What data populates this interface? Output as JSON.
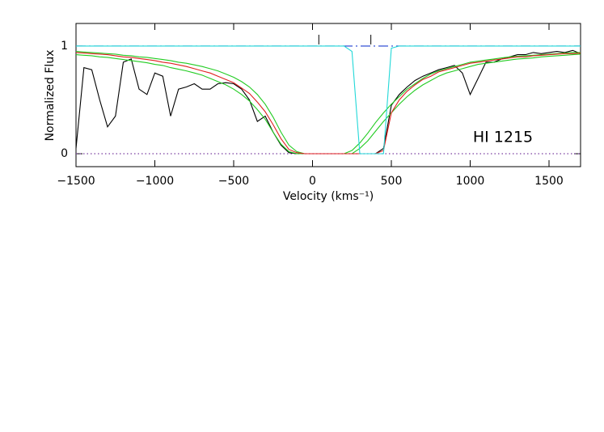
{
  "chart_data": {
    "type": "line",
    "xlabel": "Velocity (kms⁻¹)",
    "ylabel": "Normalized Flux",
    "annotation": "HI 1215",
    "xlim": [
      -1500,
      1700
    ],
    "ylim": [
      -0.12,
      1.21
    ],
    "xticks": [
      {
        "value": -1500,
        "label": "−1500"
      },
      {
        "value": -1000,
        "label": "−1000"
      },
      {
        "value": -500,
        "label": "−500"
      },
      0,
      500,
      1000,
      1500
    ],
    "yticks": [
      0,
      1
    ],
    "component_markers": [
      40,
      370
    ],
    "reference_lines": [
      {
        "value": 1,
        "color": "#1f3fd0",
        "style": "dashed"
      },
      {
        "value": 0,
        "color": "#7a3fa0",
        "style": "dotted"
      }
    ],
    "x": [
      -1500,
      -1450,
      -1400,
      -1350,
      -1300,
      -1250,
      -1200,
      -1150,
      -1100,
      -1050,
      -1000,
      -950,
      -900,
      -850,
      -800,
      -750,
      -700,
      -650,
      -600,
      -550,
      -500,
      -450,
      -400,
      -350,
      -300,
      -250,
      -200,
      -150,
      -100,
      -50,
      0,
      50,
      100,
      150,
      200,
      250,
      300,
      350,
      400,
      450,
      500,
      550,
      600,
      650,
      700,
      750,
      800,
      850,
      900,
      950,
      1000,
      1050,
      1100,
      1150,
      1200,
      1250,
      1300,
      1350,
      1400,
      1450,
      1500,
      1550,
      1600,
      1650,
      1700
    ],
    "series": [
      {
        "name": "data",
        "color": "#000000",
        "values": [
          0.05,
          0.8,
          0.78,
          0.5,
          0.25,
          0.35,
          0.85,
          0.88,
          0.6,
          0.55,
          0.75,
          0.72,
          0.35,
          0.6,
          0.62,
          0.65,
          0.6,
          0.6,
          0.65,
          0.66,
          0.65,
          0.6,
          0.5,
          0.3,
          0.35,
          0.2,
          0.08,
          0.01,
          0,
          0,
          0,
          0,
          0,
          0,
          0,
          0,
          0,
          0,
          0,
          0.05,
          0.45,
          0.55,
          0.62,
          0.68,
          0.72,
          0.75,
          0.78,
          0.8,
          0.82,
          0.75,
          0.55,
          0.7,
          0.85,
          0.85,
          0.88,
          0.9,
          0.92,
          0.92,
          0.94,
          0.93,
          0.94,
          0.95,
          0.94,
          0.96,
          0.93
        ]
      },
      {
        "name": "fit-low",
        "color": "#22cc22",
        "values": [
          0.92,
          0.915,
          0.91,
          0.9,
          0.895,
          0.885,
          0.875,
          0.865,
          0.855,
          0.845,
          0.83,
          0.82,
          0.8,
          0.785,
          0.77,
          0.75,
          0.73,
          0.7,
          0.67,
          0.64,
          0.6,
          0.55,
          0.49,
          0.41,
          0.32,
          0.2,
          0.09,
          0.02,
          0,
          0,
          0,
          0,
          0,
          0,
          0,
          0,
          0.05,
          0.12,
          0.21,
          0.3,
          0.38,
          0.46,
          0.53,
          0.59,
          0.64,
          0.68,
          0.72,
          0.75,
          0.77,
          0.79,
          0.81,
          0.83,
          0.84,
          0.85,
          0.86,
          0.87,
          0.88,
          0.885,
          0.89,
          0.9,
          0.905,
          0.91,
          0.915,
          0.92,
          0.925
        ]
      },
      {
        "name": "fit-high",
        "color": "#22cc22",
        "values": [
          0.95,
          0.945,
          0.94,
          0.935,
          0.93,
          0.925,
          0.915,
          0.91,
          0.9,
          0.895,
          0.885,
          0.875,
          0.865,
          0.85,
          0.84,
          0.825,
          0.81,
          0.79,
          0.77,
          0.74,
          0.71,
          0.67,
          0.62,
          0.55,
          0.46,
          0.34,
          0.2,
          0.08,
          0.02,
          0,
          0,
          0,
          0,
          0,
          0,
          0.03,
          0.1,
          0.19,
          0.29,
          0.38,
          0.46,
          0.53,
          0.6,
          0.65,
          0.7,
          0.74,
          0.77,
          0.79,
          0.81,
          0.83,
          0.85,
          0.86,
          0.87,
          0.88,
          0.89,
          0.9,
          0.905,
          0.91,
          0.915,
          0.92,
          0.925,
          0.93,
          0.935,
          0.94,
          0.94
        ]
      },
      {
        "name": "fit",
        "color": "#e02020",
        "values": [
          0.94,
          0.935,
          0.93,
          0.925,
          0.92,
          0.91,
          0.9,
          0.895,
          0.885,
          0.875,
          0.865,
          0.85,
          0.84,
          0.825,
          0.81,
          0.79,
          0.77,
          0.75,
          0.72,
          0.69,
          0.66,
          0.61,
          0.56,
          0.48,
          0.39,
          0.27,
          0.14,
          0.04,
          0.01,
          0,
          0,
          0,
          0,
          0,
          0,
          0,
          0,
          0,
          0,
          0.03,
          0.38,
          0.5,
          0.58,
          0.64,
          0.69,
          0.72,
          0.76,
          0.78,
          0.8,
          0.82,
          0.84,
          0.85,
          0.86,
          0.87,
          0.88,
          0.89,
          0.9,
          0.9,
          0.91,
          0.915,
          0.92,
          0.925,
          0.93,
          0.93,
          0.935
        ]
      },
      {
        "name": "component",
        "color": "#22d8d8",
        "values": [
          1,
          1,
          1,
          1,
          1,
          1,
          1,
          1,
          1,
          1,
          1,
          1,
          1,
          1,
          1,
          1,
          1,
          1,
          1,
          1,
          1,
          1,
          1,
          1,
          1,
          1,
          1,
          1,
          1,
          1,
          1,
          1,
          1,
          1,
          1,
          0.95,
          0,
          0,
          0,
          0,
          0.98,
          1,
          1,
          1,
          1,
          1,
          1,
          1,
          1,
          1,
          1,
          1,
          1,
          1,
          1,
          1,
          1,
          1,
          1,
          1,
          1,
          1,
          1,
          1,
          1
        ]
      }
    ]
  }
}
